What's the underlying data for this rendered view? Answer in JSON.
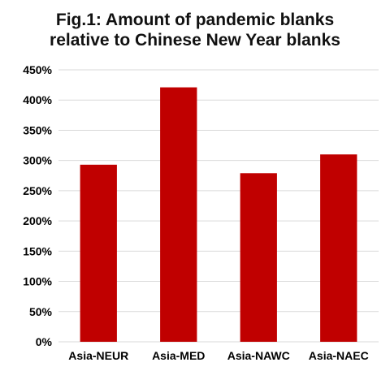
{
  "chart_data": {
    "type": "bar",
    "title_lines": [
      "Fig.1: Amount of pandemic blanks",
      "relative to Chinese New Year blanks"
    ],
    "categories": [
      "Asia-NEUR",
      "Asia-MED",
      "Asia-NAWC",
      "Asia-NAEC"
    ],
    "values": [
      293,
      421,
      279,
      310
    ],
    "y_ticks": [
      "0%",
      "50%",
      "100%",
      "150%",
      "200%",
      "250%",
      "300%",
      "350%",
      "400%",
      "450%"
    ],
    "ylim": [
      0,
      450
    ],
    "y_unit": "%",
    "grid": true,
    "legend": "none",
    "bar_color": "#c00000",
    "grid_color": "#d9d9d9"
  }
}
